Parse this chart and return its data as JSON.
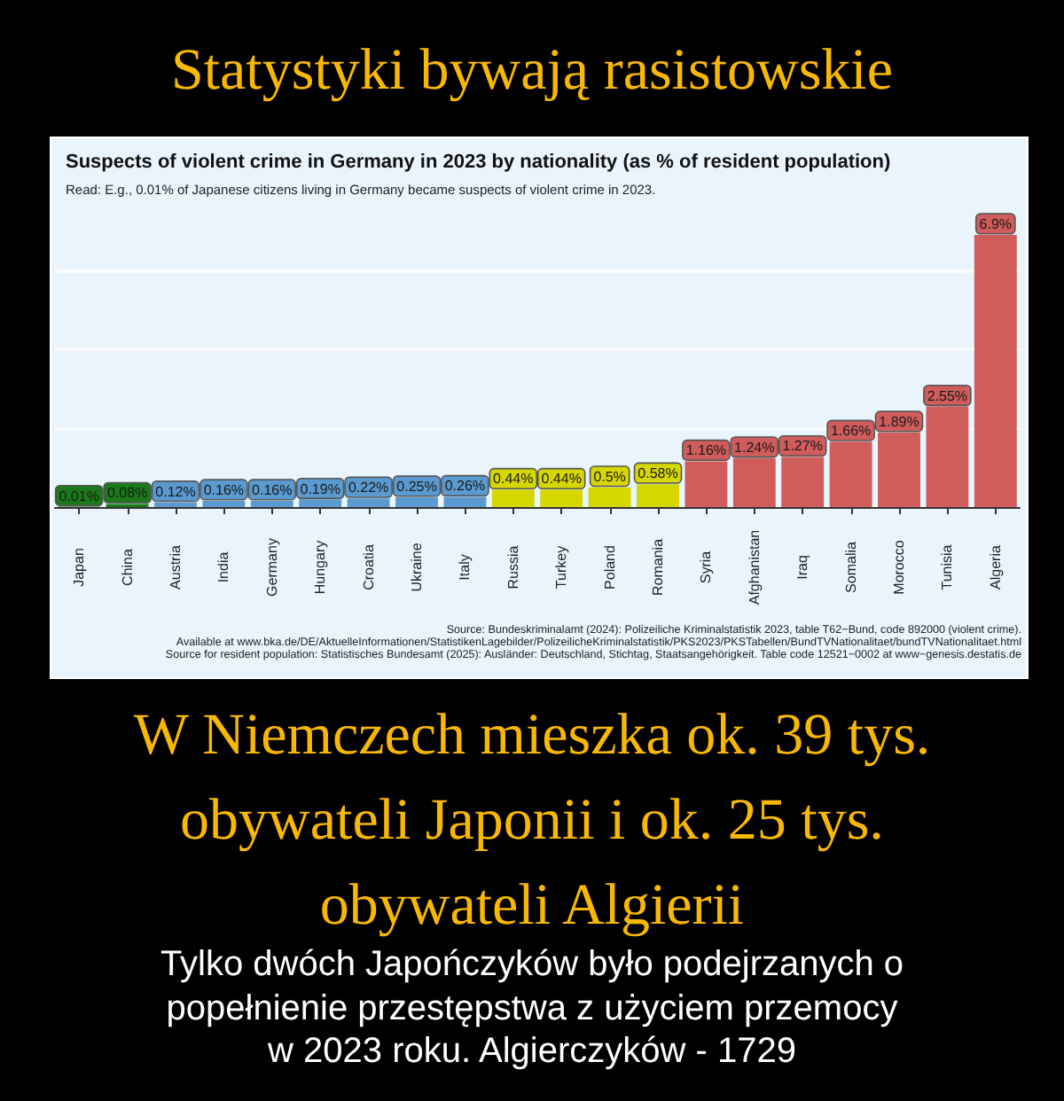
{
  "chart_data": {
    "type": "bar",
    "title": "Suspects of violent crime in Germany in 2023 by nationality (as % of resident population)",
    "subtitle": "Read: E.g., 0.01% of Japanese citizens living in Germany became suspects of violent crime in 2023.",
    "categories": [
      "Japan",
      "China",
      "Austria",
      "India",
      "Germany",
      "Hungary",
      "Croatia",
      "Ukraine",
      "Italy",
      "Russia",
      "Turkey",
      "Poland",
      "Romania",
      "Syria",
      "Afghanistan",
      "Iraq",
      "Somalia",
      "Morocco",
      "Tunisia",
      "Algeria"
    ],
    "values": [
      0.01,
      0.08,
      0.12,
      0.16,
      0.16,
      0.19,
      0.22,
      0.25,
      0.26,
      0.44,
      0.44,
      0.5,
      0.58,
      1.16,
      1.24,
      1.27,
      1.66,
      1.89,
      2.55,
      6.9
    ],
    "value_labels": [
      "0.01%",
      "0.08%",
      "0.12%",
      "0.16%",
      "0.16%",
      "0.19%",
      "0.22%",
      "0.25%",
      "0.26%",
      "0.44%",
      "0.44%",
      "0.5%",
      "0.58%",
      "1.16%",
      "1.24%",
      "1.27%",
      "1.66%",
      "1.89%",
      "2.55%",
      "6.9%"
    ],
    "colors": [
      "#1a7a1a",
      "#1a7a1a",
      "#5a9ad0",
      "#5a9ad0",
      "#5a9ad0",
      "#5a9ad0",
      "#5a9ad0",
      "#5a9ad0",
      "#5a9ad0",
      "#d6d600",
      "#d6d600",
      "#d6d600",
      "#d6d600",
      "#d05c5c",
      "#d05c5c",
      "#d05c5c",
      "#d05c5c",
      "#d05c5c",
      "#d05c5c",
      "#d05c5c"
    ],
    "grid": "y",
    "tick_labels": "x",
    "annotations": [
      "Statystyki bywają rasistowskie",
      "W Niemczech mieszka ok. 39 tys. obywateli Japonii i ok. 25 tys. obywateli Algierii",
      "Tylko dwóch Japończyków było podejrzanych o popełnienie przestępstwa z użyciem przemocy w 2023 roku. Algierczyków - 1729",
      "Source: Bundeskriminalamt (2024): Polizeiliche Kriminalstatistik 2023, table T62−Bund, code 892000 (violent crime).",
      "Available at www.bka.de/DE/AktuelleInformationen/StatistikenLagebilder/PolizeilicheKriminalstatistik/PKS2023/PKSTabellen/BundTVNationalitaet/bundTVNationalitaet.html",
      "Source for resident population: Statistisches Bundesamt (2025): Ausländer: Deutschland, Stichtag, Staatsangehörigkeit. Table code 12521−0002 at www−genesis.destatis.de"
    ]
  }
}
